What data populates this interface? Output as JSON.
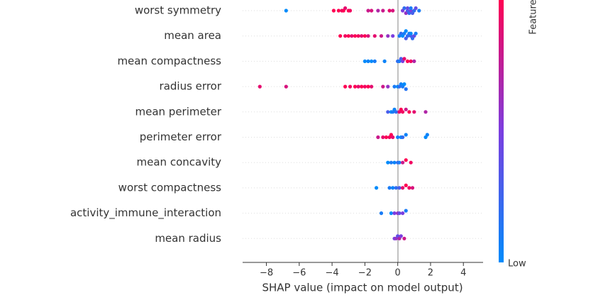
{
  "chart_data": {
    "type": "beeswarm",
    "xlabel": "SHAP value (impact on model output)",
    "xlim": [
      -9.45,
      5.2
    ],
    "xticks": [
      {
        "value": -8,
        "label": "−8"
      },
      {
        "value": -6,
        "label": "−6"
      },
      {
        "value": -4,
        "label": "−4"
      },
      {
        "value": -2,
        "label": "−2"
      },
      0,
      2,
      4
    ],
    "colorbar_label": "Feature",
    "colorbar_low": "Low",
    "low_color": "#008bfb",
    "mid_color": "#7b3ee0",
    "high_color": "#ff0052",
    "rows": [
      {
        "feature": "worst symmetry",
        "shap": [
          -6.8,
          -3.9,
          -3.6,
          -3.4,
          -3.3,
          -3.2,
          -3.0,
          -2.9,
          -1.8,
          -1.6,
          -1.2,
          -0.9,
          -0.5,
          -0.3,
          0.3,
          0.4,
          0.5,
          0.6,
          0.6,
          0.7,
          0.8,
          0.8,
          0.9,
          1.0,
          1.1,
          1.3
        ],
        "feature_value": [
          0.0,
          1.0,
          1.0,
          0.95,
          1.0,
          0.9,
          1.0,
          0.95,
          0.8,
          0.85,
          0.7,
          0.8,
          0.9,
          0.85,
          0.5,
          0.2,
          0.6,
          0.3,
          0.4,
          0.2,
          0.5,
          0.1,
          0.3,
          0.2,
          0.4,
          0.1
        ]
      },
      {
        "feature": "mean area",
        "shap": [
          -3.5,
          -3.2,
          -3.0,
          -2.8,
          -2.6,
          -2.4,
          -2.2,
          -2.0,
          -1.8,
          -1.4,
          -1.0,
          -0.6,
          -0.3,
          0.1,
          0.2,
          0.3,
          0.4,
          0.5,
          0.5,
          0.6,
          0.7,
          0.8,
          0.8,
          0.9,
          1.0,
          1.1
        ],
        "feature_value": [
          1.0,
          0.95,
          1.0,
          0.9,
          1.0,
          0.95,
          0.9,
          1.0,
          0.85,
          0.9,
          0.8,
          0.6,
          0.5,
          0.1,
          0.2,
          0.0,
          0.1,
          0.3,
          0.0,
          0.2,
          0.1,
          0.3,
          0.0,
          0.2,
          0.4,
          0.1
        ]
      },
      {
        "feature": "mean compactness",
        "shap": [
          -2.0,
          -1.8,
          -1.6,
          -1.4,
          -0.8,
          0.0,
          0.1,
          0.2,
          0.3,
          0.4,
          0.6,
          0.8,
          1.0
        ],
        "feature_value": [
          0.0,
          0.05,
          0.0,
          0.1,
          0.05,
          0.2,
          0.1,
          0.3,
          0.5,
          0.9,
          1.0,
          0.95,
          0.7
        ]
      },
      {
        "feature": "radius error",
        "shap": [
          -8.4,
          -6.8,
          -3.2,
          -2.9,
          -2.6,
          -2.4,
          -2.2,
          -2.0,
          -1.8,
          -1.6,
          -0.9,
          -0.6,
          -0.2,
          0.0,
          0.1,
          0.2,
          0.3,
          0.4,
          0.5
        ],
        "feature_value": [
          0.9,
          0.85,
          1.0,
          0.95,
          1.0,
          0.9,
          1.0,
          0.95,
          1.0,
          0.9,
          0.8,
          0.6,
          0.1,
          0.0,
          0.2,
          0.05,
          0.1,
          0.0,
          0.15
        ]
      },
      {
        "feature": "mean perimeter",
        "shap": [
          -0.6,
          -0.4,
          -0.3,
          -0.2,
          -0.1,
          0.1,
          0.2,
          0.3,
          0.5,
          0.7,
          1.0,
          1.7
        ],
        "feature_value": [
          0.3,
          0.0,
          0.1,
          0.05,
          0.2,
          0.9,
          1.0,
          0.95,
          0.8,
          1.0,
          0.9,
          0.7
        ]
      },
      {
        "feature": "perimeter error",
        "shap": [
          -1.2,
          -0.9,
          -0.7,
          -0.5,
          -0.4,
          -0.3,
          0.0,
          0.2,
          0.3,
          0.5,
          1.7,
          1.8
        ],
        "feature_value": [
          0.8,
          0.9,
          1.0,
          0.95,
          1.0,
          0.9,
          0.1,
          0.0,
          0.2,
          0.05,
          0.0,
          0.05
        ]
      },
      {
        "feature": "mean concavity",
        "shap": [
          -0.6,
          -0.4,
          -0.2,
          0.0,
          0.1,
          0.3,
          0.5,
          0.8
        ],
        "feature_value": [
          0.0,
          0.1,
          0.05,
          0.2,
          0.1,
          0.8,
          1.0,
          0.95
        ]
      },
      {
        "feature": "worst compactness",
        "shap": [
          -1.3,
          -0.5,
          -0.3,
          -0.1,
          0.1,
          0.3,
          0.5,
          0.7,
          0.9
        ],
        "feature_value": [
          0.0,
          0.1,
          0.05,
          0.2,
          0.3,
          0.9,
          1.0,
          0.95,
          0.85
        ]
      },
      {
        "feature": "activity_immune_interaction",
        "shap": [
          -1.0,
          -0.4,
          -0.2,
          0.0,
          0.1,
          0.3,
          0.5
        ],
        "feature_value": [
          0.1,
          0.0,
          0.5,
          0.6,
          0.4,
          0.5,
          0.1
        ]
      },
      {
        "feature": "mean radius",
        "shap": [
          -0.2,
          -0.1,
          0.0,
          0.1,
          0.2,
          0.4
        ],
        "feature_value": [
          0.5,
          0.6,
          0.4,
          0.7,
          0.5,
          0.8
        ]
      }
    ]
  }
}
